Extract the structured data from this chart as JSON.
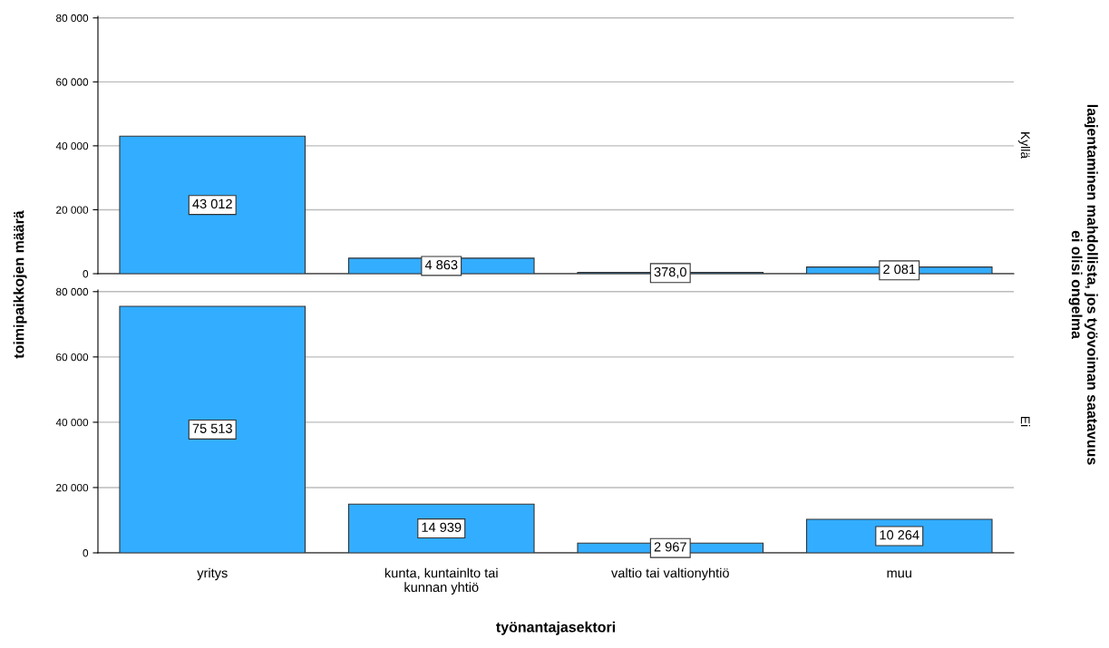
{
  "chart_data": [
    {
      "type": "bar",
      "categories": [
        null,
        null,
        null,
        null
      ],
      "values": [
        43012,
        4863,
        378.0,
        2081
      ],
      "value_labels": [
        "43 012",
        "4 863",
        "378,0",
        "2 081"
      ],
      "color": "#33adff",
      "ylim": [
        0,
        80500
      ],
      "yticks": [
        {
          "value": 0,
          "label": "0"
        },
        {
          "value": 20000,
          "label": "20 000"
        },
        {
          "value": 40000,
          "label": "40 000"
        },
        {
          "value": 60000,
          "label": "60 000"
        },
        {
          "value": 80000,
          "label": "80 000"
        }
      ],
      "grid": "y",
      "tick_labels": "y",
      "ylabel": "toimipaikkojen määrä",
      "y2label": "laajentaminen mahdollista, jos työvoiman saatavuus\nei olisi ongelma",
      "annotations": [
        "Kyllä"
      ]
    },
    {
      "type": "bar",
      "categories": [
        "yritys",
        "kunta, kuntainlto tai\nkunnan yhtiö",
        "valtio tai valtionyhtiö",
        "muu"
      ],
      "values": [
        75513,
        14939,
        2967,
        10264
      ],
      "value_labels": [
        "75 513",
        "14 939",
        "2 967",
        "10 264"
      ],
      "color": "#33adff",
      "ylim": [
        0,
        80500
      ],
      "yticks": [
        {
          "value": 0,
          "label": "0"
        },
        {
          "value": 20000,
          "label": "20 000"
        },
        {
          "value": 40000,
          "label": "40 000"
        },
        {
          "value": 60000,
          "label": "60 000"
        },
        {
          "value": 80000,
          "label": "80 000"
        }
      ],
      "grid": "y",
      "xlabel": "työnantajasektori",
      "annotations": [
        "Ei"
      ]
    }
  ]
}
